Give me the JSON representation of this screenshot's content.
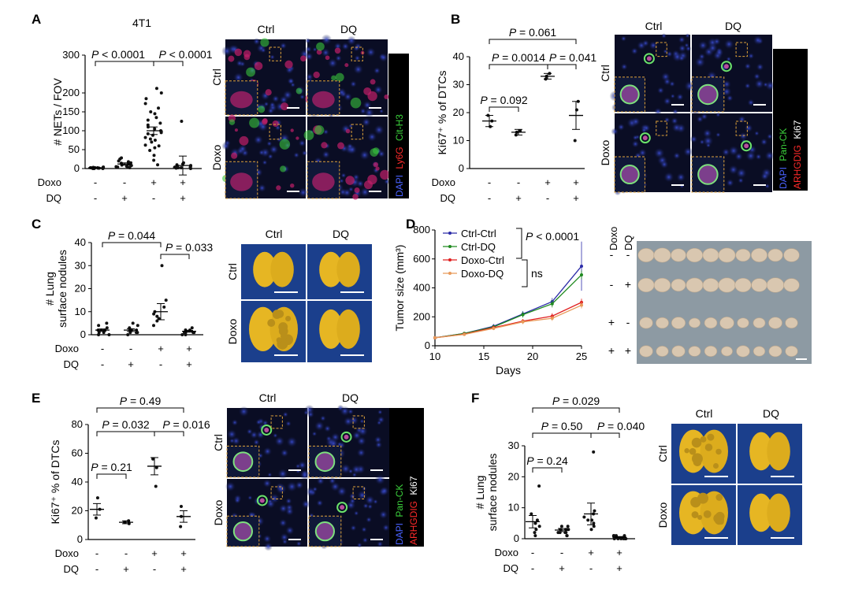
{
  "figure": {
    "colors": {
      "blue": "#2b2ba8",
      "green": "#1f8a1f",
      "red": "#e02020",
      "orange": "#e89a5a",
      "tissue_bg": "#1b3f8c",
      "lung": "#e6b623",
      "tumor": "#d9c7b0"
    },
    "treat_labels": {
      "doxo": "Doxo",
      "dq": "DQ",
      "minus": "-",
      "plus": "+"
    },
    "col_labels": {
      "ctrl": "Ctrl",
      "dq": "DQ"
    },
    "row_labels": {
      "ctrl": "Ctrl",
      "doxo": "Doxo"
    },
    "panels": {
      "A": {
        "letter": "A",
        "title": "4T1",
        "ylabel": "# NETs / FOV",
        "yticks": [
          "0",
          "50",
          "100",
          "150",
          "200",
          "300"
        ],
        "pvalues": [
          "P < 0.0001",
          "P < 0.0001"
        ],
        "stain": {
          "dapi": "DAPI",
          "ly6g": "Ly6G",
          "cith3": "Cit-H3"
        }
      },
      "B": {
        "letter": "B",
        "ylabel": "Ki67⁺ % of DTCs",
        "yticks": [
          "0",
          "10",
          "20",
          "30",
          "40"
        ],
        "pvalues": [
          "P = 0.061",
          "P = 0.0014",
          "P = 0.041",
          "P = 0.092"
        ],
        "stain": {
          "dapi": "DAPI",
          "panck": "Pan-CK",
          "arhgdig": "ARHGDIG",
          "ki67": "Ki67"
        }
      },
      "C": {
        "letter": "C",
        "ylabel1": "# Lung",
        "ylabel2": "surface nodules",
        "yticks": [
          "0",
          "10",
          "20",
          "30",
          "40"
        ],
        "pvalues": [
          "P = 0.044",
          "P = 0.033"
        ]
      },
      "D": {
        "letter": "D",
        "ylabel": "Tumor size (mm³)",
        "xlabel": "Days",
        "xticks": [
          "10",
          "15",
          "20",
          "25"
        ],
        "yticks": [
          "0",
          "200",
          "400",
          "600",
          "800"
        ],
        "pvalues": [
          "P < 0.0001",
          "ns"
        ],
        "photo_header": {
          "doxo": "Doxo",
          "dq": "DQ"
        }
      },
      "E": {
        "letter": "E",
        "ylabel": "Ki67⁺ % of DTCs",
        "yticks": [
          "0",
          "20",
          "40",
          "60",
          "80"
        ],
        "pvalues": [
          "P = 0.49",
          "P = 0.032",
          "P = 0.016",
          "P = 0.21"
        ],
        "stain": {
          "dapi": "DAPI",
          "panck": "Pan-CK",
          "arhgdig": "ARHGDIG",
          "ki67": "Ki67"
        }
      },
      "F": {
        "letter": "F",
        "ylabel1": "# Lung",
        "ylabel2": "surface nodules",
        "yticks": [
          "0",
          "10",
          "20",
          "30"
        ],
        "pvalues": [
          "P = 0.029",
          "P = 0.50",
          "P = 0.040",
          "P = 0.24"
        ]
      }
    }
  },
  "chart_data": [
    {
      "type": "scatter",
      "panel": "A",
      "categories": [
        "Ctrl-Ctrl",
        "Ctrl-DQ",
        "Doxo-Ctrl",
        "Doxo-DQ"
      ],
      "ylim": [
        0,
        300
      ],
      "ylabel": "# NETs / FOV",
      "title": "4T1",
      "points": [
        [
          1,
          2,
          0,
          3,
          1,
          2,
          4,
          0,
          1,
          2,
          3,
          1,
          0,
          2
        ],
        [
          3,
          5,
          8,
          12,
          15,
          20,
          25,
          28,
          10,
          6,
          2,
          9,
          14,
          18,
          4
        ],
        [
          10,
          22,
          35,
          48,
          55,
          62,
          70,
          78,
          82,
          88,
          92,
          95,
          100,
          105,
          110,
          115,
          120,
          128,
          135,
          145,
          150,
          160,
          172,
          185,
          200,
          212,
          60,
          75,
          98
        ],
        [
          0,
          1,
          2,
          3,
          5,
          8,
          10,
          12,
          15,
          4,
          6,
          2,
          3,
          125
        ]
      ],
      "mean": [
        2,
        12,
        100,
        8
      ],
      "sem_err": [
        1,
        3,
        10,
        25
      ]
    },
    {
      "type": "scatter",
      "panel": "B",
      "categories": [
        "Ctrl-Ctrl",
        "Ctrl-DQ",
        "Doxo-Ctrl",
        "Doxo-DQ"
      ],
      "ylim": [
        0,
        40
      ],
      "ylabel": "Ki67⁺ % of DTCs",
      "points": [
        [
          15,
          17,
          19
        ],
        [
          12,
          13,
          13.5
        ],
        [
          32,
          33,
          34
        ],
        [
          10,
          21,
          24
        ]
      ],
      "mean": [
        17,
        13,
        33,
        19
      ],
      "sem_err": [
        2,
        1,
        1,
        5
      ]
    },
    {
      "type": "scatter",
      "panel": "C",
      "categories": [
        "Ctrl-Ctrl",
        "Ctrl-DQ",
        "Doxo-Ctrl",
        "Doxo-DQ"
      ],
      "ylim": [
        0,
        40
      ],
      "ylabel": "# Lung surface nodules",
      "points": [
        [
          0,
          1,
          2,
          3,
          5,
          1,
          2,
          0,
          4,
          2
        ],
        [
          0,
          1,
          2,
          3,
          2,
          1,
          4,
          2,
          5,
          1
        ],
        [
          4,
          6,
          8,
          9,
          10,
          12,
          15,
          30,
          7
        ],
        [
          0,
          1,
          2,
          1,
          2,
          3,
          1,
          0,
          2,
          1
        ]
      ],
      "mean": [
        2,
        2,
        10,
        1.5
      ],
      "sem_err": [
        0.5,
        0.6,
        3.5,
        0.4
      ]
    },
    {
      "type": "line",
      "panel": "D",
      "x": [
        10,
        13,
        16,
        19,
        22,
        25
      ],
      "xlim": [
        10,
        25
      ],
      "ylim": [
        0,
        800
      ],
      "xlabel": "Days",
      "ylabel": "Tumor size (mm³)",
      "series": [
        {
          "name": "Ctrl-Ctrl",
          "color": "#2b2ba8",
          "values": [
            55,
            85,
            135,
            220,
            305,
            550
          ],
          "err": [
            8,
            10,
            15,
            20,
            25,
            170
          ]
        },
        {
          "name": "Ctrl-DQ",
          "color": "#1f8a1f",
          "values": [
            55,
            85,
            130,
            215,
            290,
            490
          ],
          "err": [
            8,
            10,
            15,
            20,
            25,
            30
          ]
        },
        {
          "name": "Doxo-Ctrl",
          "color": "#e02020",
          "values": [
            55,
            80,
            125,
            170,
            205,
            300
          ],
          "err": [
            8,
            8,
            12,
            15,
            20,
            25
          ]
        },
        {
          "name": "Doxo-DQ",
          "color": "#e89a5a",
          "values": [
            55,
            78,
            120,
            165,
            190,
            280
          ],
          "err": [
            8,
            8,
            12,
            15,
            18,
            22
          ]
        }
      ],
      "legend_loc": "top-left"
    },
    {
      "type": "scatter",
      "panel": "E",
      "categories": [
        "Ctrl-Ctrl",
        "Ctrl-DQ",
        "Doxo-Ctrl",
        "Doxo-DQ"
      ],
      "ylim": [
        0,
        80
      ],
      "ylabel": "Ki67⁺ % of DTCs",
      "points": [
        [
          15,
          21,
          29
        ],
        [
          11,
          12,
          13
        ],
        [
          37,
          50,
          56
        ],
        [
          9,
          16,
          23
        ]
      ],
      "mean": [
        21,
        12,
        51,
        16
      ],
      "sem_err": [
        4,
        1,
        6,
        4
      ]
    },
    {
      "type": "scatter",
      "panel": "F",
      "categories": [
        "Ctrl-Ctrl",
        "Ctrl-DQ",
        "Doxo-Ctrl",
        "Doxo-DQ"
      ],
      "ylim": [
        0,
        30
      ],
      "ylabel": "# Lung surface nodules",
      "points": [
        [
          1,
          2,
          4,
          5,
          6,
          8,
          17,
          3,
          5
        ],
        [
          1,
          2,
          2,
          3,
          3,
          4,
          2,
          3,
          1,
          3,
          4,
          2
        ],
        [
          3,
          5,
          6,
          7,
          8,
          9,
          28,
          6,
          4
        ],
        [
          0,
          0,
          1,
          0,
          1,
          0,
          0,
          1,
          0,
          1
        ]
      ],
      "mean": [
        5.5,
        2.8,
        8,
        0.5
      ],
      "sem_err": [
        2,
        0.5,
        3.5,
        0.2
      ]
    }
  ]
}
